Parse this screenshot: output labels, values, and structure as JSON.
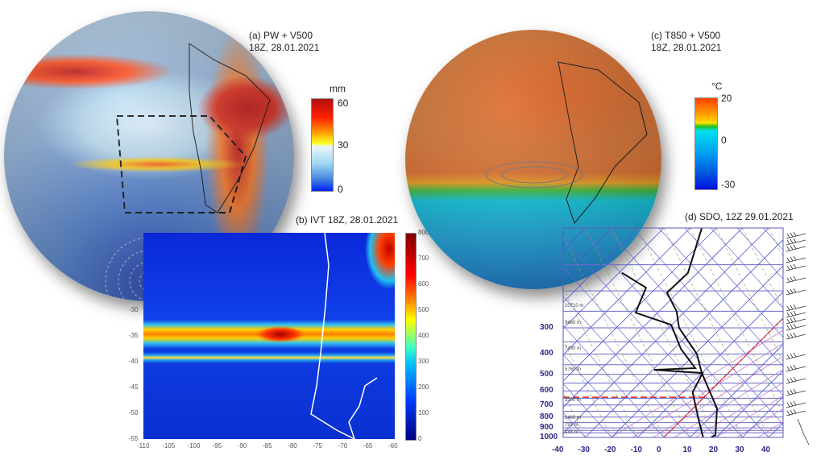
{
  "panel_a": {
    "title_line1": "(a) PW + V500",
    "title_line2": "18Z, 28.01.2021",
    "colorbar": {
      "unit": "mm",
      "ticks": [
        "60",
        "30",
        "0"
      ],
      "colors": [
        "#b01010",
        "#ff2000",
        "#ff9000",
        "#ffff20",
        "#e8f6ff",
        "#a0d8f0",
        "#4080e0",
        "#0020ff"
      ]
    }
  },
  "panel_b": {
    "title": "(b) IVT 18Z, 28.01.2021",
    "x_ticks": [
      "-110",
      "-105",
      "-100",
      "-95",
      "-90",
      "-85",
      "-80",
      "-75",
      "-70",
      "-65",
      "-60"
    ],
    "y_ticks": [
      "-30",
      "-35",
      "-40",
      "-45",
      "-50",
      "-55"
    ],
    "colorbar_ticks": [
      "800",
      "700",
      "600",
      "500",
      "400",
      "300",
      "200",
      "100",
      "0"
    ]
  },
  "panel_c": {
    "title_line1": "(c) T850 + V500",
    "title_line2": "18Z, 28.01.2021",
    "colorbar": {
      "unit": "°C",
      "ticks": [
        "20",
        "0",
        "-30"
      ],
      "colors": [
        "#ff4000",
        "#ffa000",
        "#ffe000",
        "#20c020",
        "#00e0f0",
        "#00a0f0",
        "#0060e0",
        "#0010e0"
      ]
    }
  },
  "panel_d": {
    "title": "(d) SDO, 12Z 29.01.2021",
    "x_ticks": [
      "-40",
      "-30",
      "-20",
      "-10",
      "0",
      "10",
      "20",
      "30",
      "40"
    ],
    "p_ticks": [
      "300",
      "400",
      "500",
      "600",
      "700",
      "800",
      "900",
      "1000"
    ],
    "height_labels": [
      "10710 m",
      "9460 m",
      "7430 m",
      "5760 m",
      "3100 m",
      "1460 m",
      "791 m",
      "145 m"
    ],
    "chart_data": {
      "type": "line",
      "xlabel": "",
      "ylabel": "",
      "xlim": [
        -40,
        45
      ],
      "ylim_hPa": [
        1000,
        100
      ],
      "y_scale": "log",
      "series": [
        {
          "role": "temperature",
          "color": "#111111",
          "points": [
            [
              18,
              1000
            ],
            [
              19.7,
              974
            ],
            [
              20.3,
              727
            ],
            [
              14.5,
              493
            ],
            [
              12.6,
              400
            ],
            [
              5.8,
              300
            ],
            [
              4.9,
              251
            ],
            [
              1.2,
              204
            ],
            [
              9.2,
              164
            ],
            [
              14.5,
              100
            ]
          ]
        },
        {
          "role": "dewpoint",
          "color": "#111111",
          "points": [
            [
              15,
              1000
            ],
            [
              13.2,
              816
            ],
            [
              11,
              609
            ],
            [
              14.8,
              493
            ],
            [
              -3.7,
              476
            ],
            [
              12,
              467
            ],
            [
              6.5,
              378
            ],
            [
              2.8,
              290
            ],
            [
              -10.8,
              254
            ],
            [
              -6.8,
              193
            ],
            [
              -16,
              164
            ]
          ]
        }
      ],
      "level_line_hPa": 643,
      "accent_color": "#e02020"
    }
  }
}
